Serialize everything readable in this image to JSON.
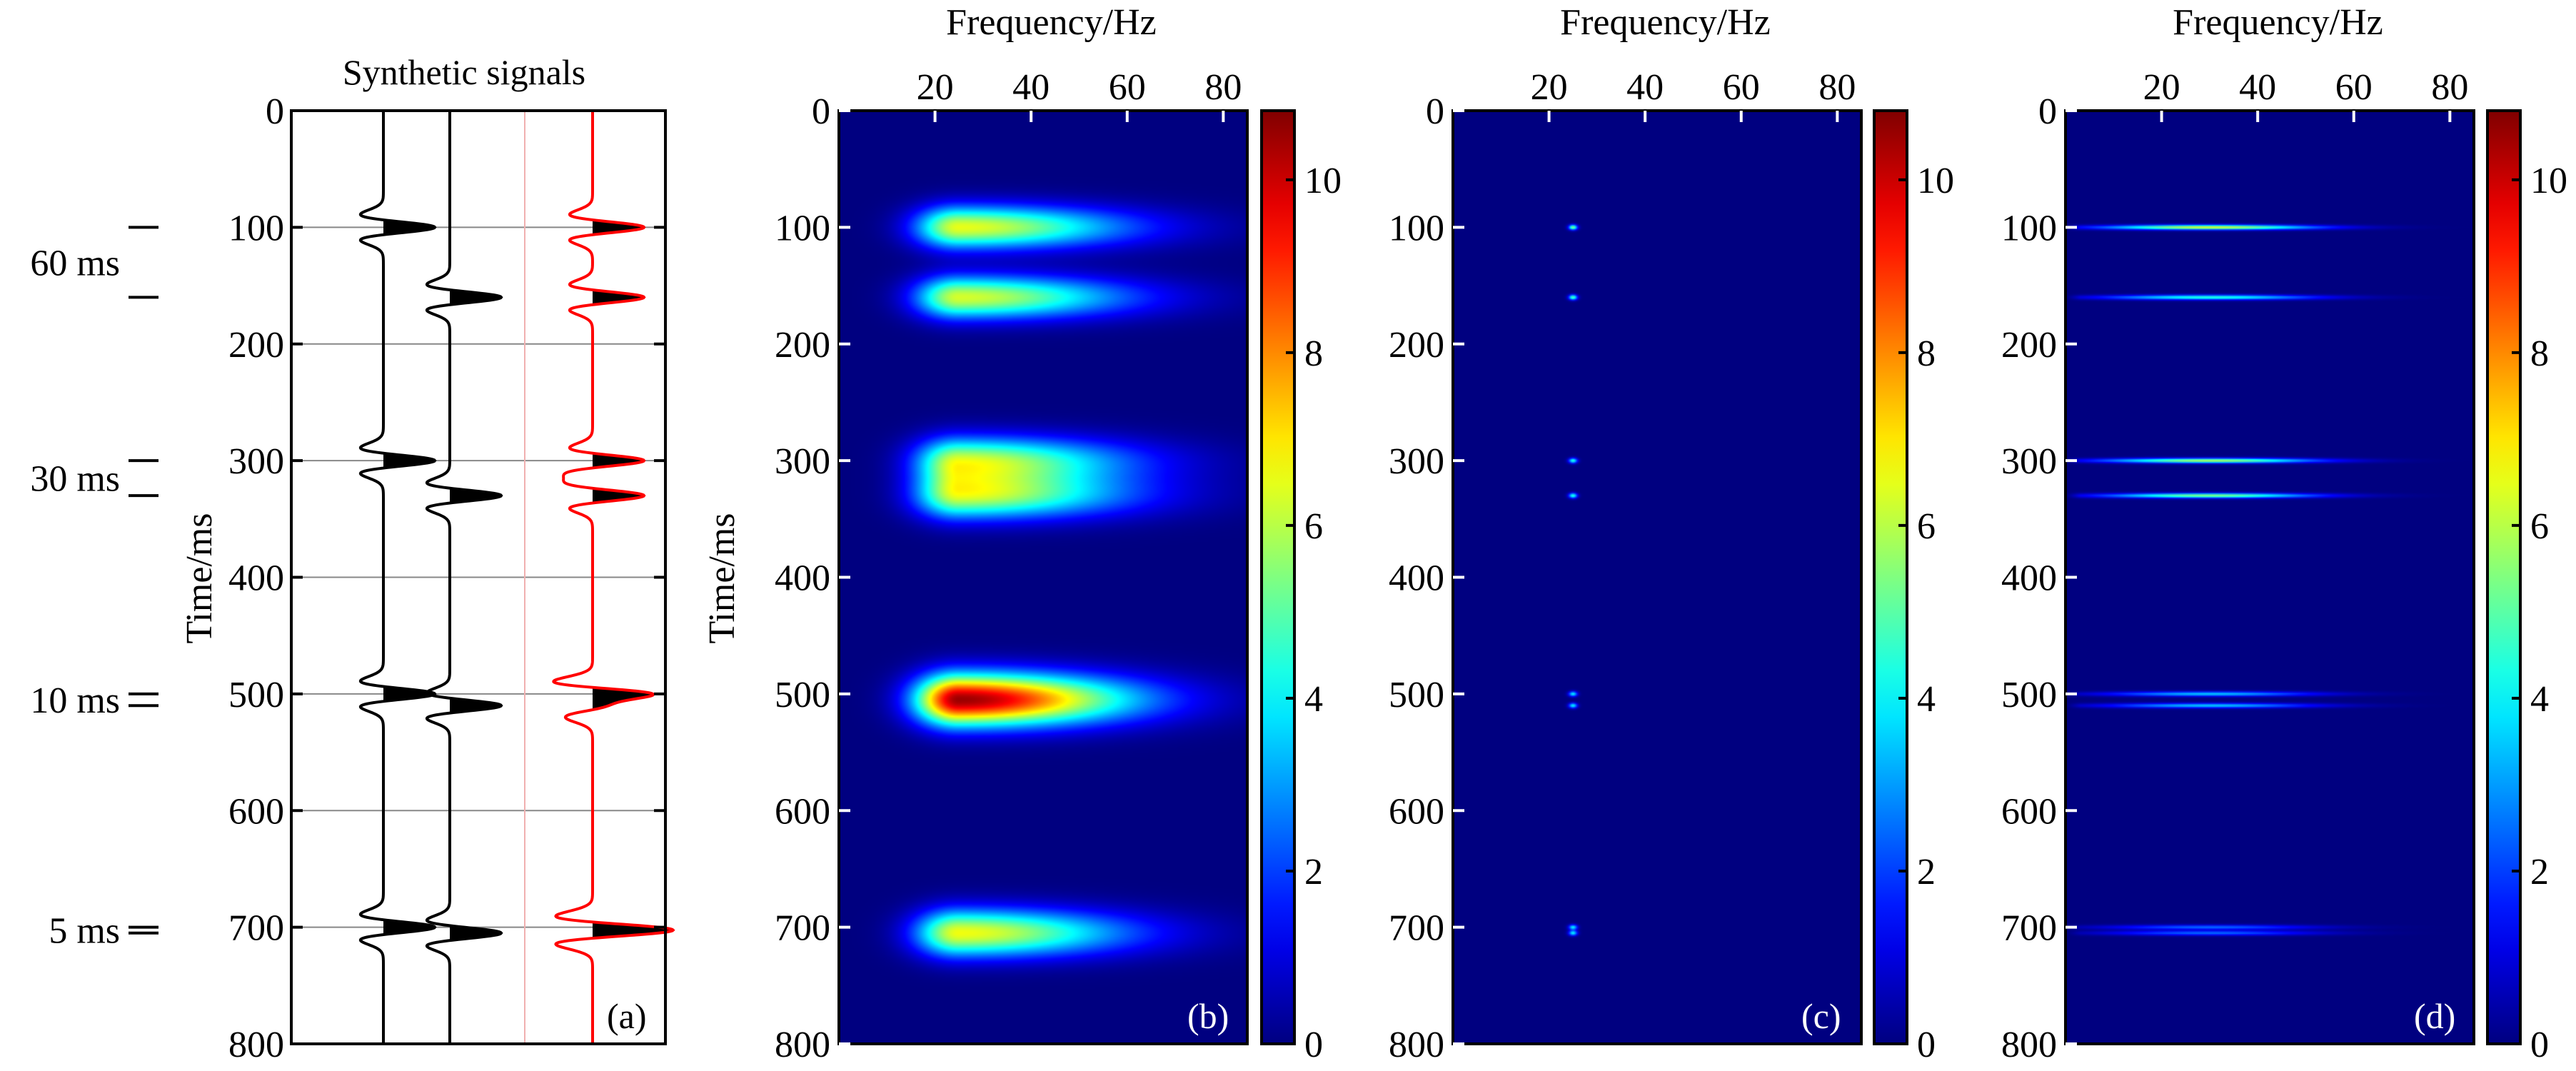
{
  "chart_data": [
    {
      "type": "line",
      "panel": "(a)",
      "title": "Synthetic signals",
      "ylabel": "Time/ms",
      "ylim": [
        0,
        800
      ],
      "yticks": [
        0,
        100,
        200,
        300,
        400,
        500,
        600,
        700,
        800
      ],
      "grid": true,
      "traces": [
        {
          "color": "#000000",
          "events": [
            {
              "t": 100,
              "polarity": 1
            },
            {
              "t": 500,
              "polarity": 1
            },
            {
              "t": 700,
              "polarity": 1
            },
            {
              "t": 300,
              "polarity": 1
            }
          ]
        },
        {
          "color": "#000000",
          "events": [
            {
              "t": 160,
              "polarity": 1
            },
            {
              "t": 330,
              "polarity": 1
            },
            {
              "t": 510,
              "polarity": 1
            },
            {
              "t": 705,
              "polarity": 1
            }
          ]
        },
        {
          "color": "#ff0000",
          "events": [
            {
              "t": 100,
              "polarity": 1
            },
            {
              "t": 160,
              "polarity": 1
            },
            {
              "t": 300,
              "polarity": 1
            },
            {
              "t": 330,
              "polarity": 1
            },
            {
              "t": 500,
              "polarity": 1.6
            },
            {
              "t": 510,
              "polarity": 1
            },
            {
              "t": 700,
              "polarity": 1
            },
            {
              "t": 705,
              "polarity": 1
            }
          ]
        }
      ],
      "annotations": [
        {
          "text": "60 ms",
          "t": [
            100,
            160
          ]
        },
        {
          "text": "30 ms",
          "t": [
            300,
            330
          ]
        },
        {
          "text": "10 ms",
          "t": [
            500,
            510
          ]
        },
        {
          "text": "5 ms",
          "t": [
            700,
            705
          ]
        }
      ]
    },
    {
      "type": "heatmap",
      "panel": "(b)",
      "xlabel": "Frequency/Hz",
      "ylabel": "Time/ms",
      "xlim": [
        0,
        85
      ],
      "xticks": [
        20,
        40,
        60,
        80
      ],
      "ylim": [
        0,
        800
      ],
      "yticks": [
        0,
        100,
        200,
        300,
        400,
        500,
        600,
        700,
        800
      ],
      "colormap": "jet",
      "clim": [
        0,
        10.8
      ],
      "colorbar_ticks": [
        0,
        2,
        4,
        6,
        8,
        10
      ],
      "blobs": [
        {
          "t": 100,
          "f": 25,
          "peak": 6.5,
          "sigma_t": 18
        },
        {
          "t": 160,
          "f": 25,
          "peak": 6.3,
          "sigma_t": 18
        },
        {
          "t": 300,
          "f": 25,
          "peak": 6.0,
          "sigma_t": 20
        },
        {
          "t": 330,
          "f": 25,
          "peak": 6.0,
          "sigma_t": 20
        },
        {
          "t": 505,
          "f": 25,
          "peak": 10.5,
          "sigma_t": 22
        },
        {
          "t": 705,
          "f": 25,
          "peak": 6.6,
          "sigma_t": 20
        }
      ]
    },
    {
      "type": "heatmap",
      "panel": "(c)",
      "xlabel": "Frequency/Hz",
      "xlim": [
        0,
        85
      ],
      "xticks": [
        20,
        40,
        60,
        80
      ],
      "ylim": [
        0,
        800
      ],
      "yticks": [
        0,
        100,
        200,
        300,
        400,
        500,
        600,
        700,
        800
      ],
      "colormap": "jet",
      "clim": [
        0,
        10.8
      ],
      "colorbar_ticks": [
        0,
        2,
        4,
        6,
        8,
        10
      ],
      "blobs": [
        {
          "t": 100,
          "f": 25,
          "peak": 5.5
        },
        {
          "t": 160,
          "f": 25,
          "peak": 5.0
        },
        {
          "t": 300,
          "f": 25,
          "peak": 4.5
        },
        {
          "t": 330,
          "f": 25,
          "peak": 4.5
        },
        {
          "t": 500,
          "f": 25,
          "peak": 4.0
        },
        {
          "t": 510,
          "f": 25,
          "peak": 4.0
        },
        {
          "t": 700,
          "f": 25,
          "peak": 4.0
        },
        {
          "t": 705,
          "f": 25,
          "peak": 4.0
        }
      ]
    },
    {
      "type": "heatmap",
      "panel": "(d)",
      "xlabel": "Frequency/Hz",
      "xlim": [
        0,
        85
      ],
      "xticks": [
        20,
        40,
        60,
        80
      ],
      "ylim": [
        0,
        800
      ],
      "yticks": [
        0,
        100,
        200,
        300,
        400,
        500,
        600,
        700,
        800
      ],
      "colormap": "jet",
      "clim": [
        0,
        10.8
      ],
      "colorbar_ticks": [
        0,
        2,
        4,
        6,
        8,
        10
      ],
      "lines": [
        {
          "t": 100,
          "peak": 6.5
        },
        {
          "t": 160,
          "peak": 4.5
        },
        {
          "t": 300,
          "peak": 6.0
        },
        {
          "t": 330,
          "peak": 5.5
        },
        {
          "t": 500,
          "peak": 3.5
        },
        {
          "t": 510,
          "peak": 3.5
        },
        {
          "t": 700,
          "peak": 2.5
        },
        {
          "t": 705,
          "peak": 2.5
        }
      ]
    }
  ]
}
